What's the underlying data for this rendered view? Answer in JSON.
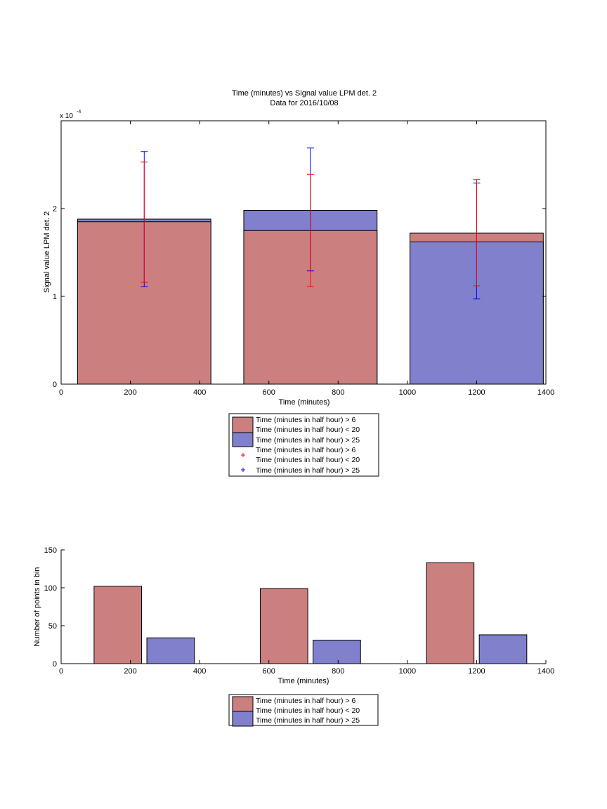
{
  "colors": {
    "blue_bar": "#8080cc",
    "red_bar": "#cc7f7f",
    "blue_err": "#0000ff",
    "red_err": "#ff0000",
    "axis": "#000000"
  },
  "chart_data": [
    {
      "type": "bar",
      "title": "Time (minutes) vs Signal value LPM det. 2",
      "subtitle": "Data for 2016/10/08",
      "xlabel": "Time (minutes)",
      "ylabel": "Signal value LPM det. 2",
      "y_exponent_label": "x 10",
      "y_exponent": "-4",
      "xlim": [
        0,
        1400
      ],
      "ylim": [
        0,
        0.0003
      ],
      "x_ticks": [
        0,
        200,
        400,
        600,
        800,
        1000,
        1200,
        1400
      ],
      "y_ticks": [
        0,
        0.0001,
        0.0002
      ],
      "y_tick_labels": [
        "0",
        "1",
        "2"
      ],
      "bar_centers": [
        240,
        720,
        1200
      ],
      "bar_width": 385,
      "series": [
        {
          "name": "Time (minutes in half hour) > 6\nTime (minutes in half hour) < 20",
          "color_key": "red_bar",
          "values": [
            0.000185,
            0.000175,
            0.000172
          ],
          "err_low": [
            0.000116,
            0.000111,
            0.000112
          ],
          "err_high": [
            0.000253,
            0.000239,
            0.000233
          ]
        },
        {
          "name": "Time (minutes in half hour) > 25",
          "color_key": "blue_bar",
          "values": [
            0.000188,
            0.000198,
            0.000162
          ],
          "err_low": [
            0.000111,
            0.000129,
            9.7e-05
          ],
          "err_high": [
            0.000265,
            0.000269,
            0.000229
          ]
        }
      ],
      "legend": {
        "placement": "below",
        "entries": [
          {
            "kind": "bar",
            "color_key": "red_bar",
            "line1": "Time (minutes in half hour) > 6",
            "line2": "Time (minutes in half hour) < 20"
          },
          {
            "kind": "bar",
            "color_key": "blue_bar",
            "line1": "Time (minutes in half hour) > 25"
          },
          {
            "kind": "marker",
            "color_key": "red_err",
            "line1": "Time (minutes in half hour) > 6",
            "line2": "Time (minutes in half hour) < 20"
          },
          {
            "kind": "marker",
            "color_key": "blue_err",
            "line1": "Time (minutes in half hour) > 25"
          }
        ]
      }
    },
    {
      "type": "bar",
      "xlabel": "Time (minutes)",
      "ylabel": "Number of points in bin",
      "xlim": [
        0,
        1400
      ],
      "ylim": [
        0,
        150
      ],
      "x_ticks": [
        0,
        200,
        400,
        600,
        800,
        1000,
        1200,
        1400
      ],
      "y_ticks": [
        0,
        50,
        100,
        150
      ],
      "categories": [
        240,
        720,
        1200
      ],
      "group_width": 305,
      "series": [
        {
          "name": "Time (minutes in half hour) > 6\nTime (minutes in half hour) < 20",
          "color_key": "red_bar",
          "values": [
            102,
            99,
            133
          ]
        },
        {
          "name": "Time (minutes in half hour) > 25",
          "color_key": "blue_bar",
          "values": [
            34,
            31,
            38
          ]
        }
      ],
      "legend": {
        "placement": "below",
        "entries": [
          {
            "kind": "bar",
            "color_key": "red_bar",
            "line1": "Time (minutes in half hour) > 6",
            "line2": "Time (minutes in half hour) < 20"
          },
          {
            "kind": "bar",
            "color_key": "blue_bar",
            "line1": "Time (minutes in half hour) > 25"
          }
        ]
      }
    }
  ]
}
